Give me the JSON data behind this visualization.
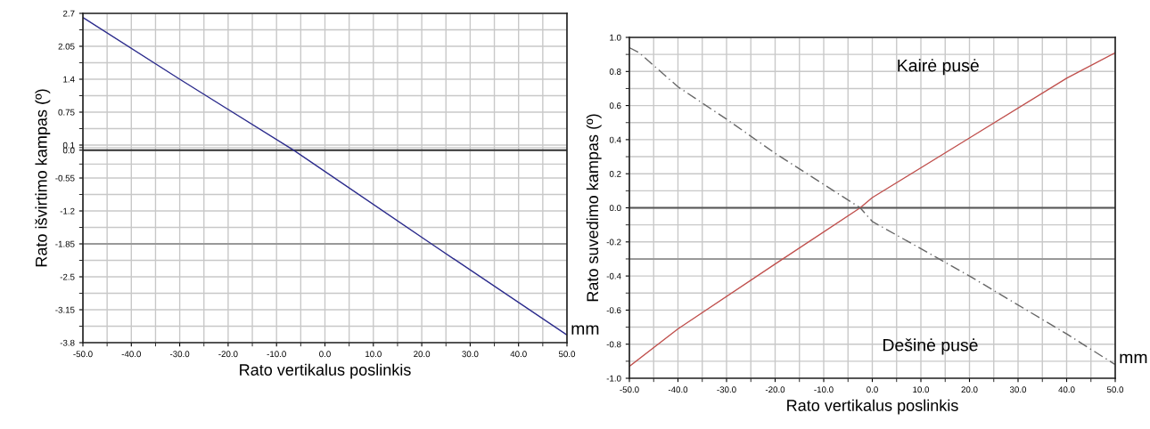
{
  "chart_data": [
    {
      "type": "line",
      "xlabel": "Rato vertikalus poslinkis",
      "ylabel": "Rato išvirtimo kampas (º)",
      "xlim": [
        -50,
        50
      ],
      "xticks": [
        {
          "value": -50,
          "label": "-50.0"
        },
        {
          "value": -40,
          "label": "-40.0"
        },
        {
          "value": -30,
          "label": "-30.0"
        },
        {
          "value": -20,
          "label": "-20.0"
        },
        {
          "value": -10,
          "label": "-10.0"
        },
        {
          "value": 0,
          "label": "0.0"
        },
        {
          "value": 10,
          "label": "10.0"
        },
        {
          "value": 20,
          "label": "20.0"
        },
        {
          "value": 30,
          "label": "30.0"
        },
        {
          "value": 40,
          "label": "40.0"
        },
        {
          "value": 50,
          "label": "50.0"
        }
      ],
      "ylim": [
        -3.8,
        2.7
      ],
      "yticks": [
        2.7,
        2.05,
        1.4,
        0.75,
        0.1,
        {
          "value": 0,
          "label": "0.0"
        },
        -0.55,
        -1.2,
        -1.85,
        -2.5,
        -3.15,
        -3.8
      ],
      "grid": true,
      "legend": false,
      "line_style": "solid",
      "series": [
        {
          "color": "#2b2b8c",
          "x": [
            -50,
            -30,
            -6.5,
            22,
            50
          ],
          "values": [
            2.62,
            1.4,
            0.0,
            -1.85,
            -3.65
          ]
        }
      ],
      "ref_lines": [
        {
          "axis": "y",
          "value": 0,
          "color": "#333333"
        },
        {
          "axis": "y",
          "value": -1.85,
          "color": "#999999"
        }
      ],
      "annotations": [
        {
          "text": "mm",
          "x": 50,
          "y": -3.6
        }
      ]
    },
    {
      "type": "line",
      "xlabel": "Rato vertikalus poslinkis",
      "ylabel": "Rato suvedimo kampas (º)",
      "xlim": [
        -50,
        50
      ],
      "xticks": [
        {
          "value": -50,
          "label": "-50.0"
        },
        {
          "value": -40,
          "label": "-40.0"
        },
        {
          "value": -30,
          "label": "-30.0"
        },
        {
          "value": -20,
          "label": "-20.0"
        },
        {
          "value": -10,
          "label": "-10.0"
        },
        {
          "value": 0,
          "label": "0.0"
        },
        {
          "value": 10,
          "label": "10.0"
        },
        {
          "value": 20,
          "label": "20.0"
        },
        {
          "value": 30,
          "label": "30.0"
        },
        {
          "value": 40,
          "label": "40.0"
        },
        {
          "value": 50,
          "label": "50.0"
        }
      ],
      "ylim": [
        -1.0,
        1.0
      ],
      "yticks": [
        {
          "value": 1.0,
          "label": "1.0"
        },
        0.8,
        0.6,
        0.4,
        0.2,
        {
          "value": 0,
          "label": "0.0"
        },
        -0.2,
        -0.4,
        -0.6,
        -0.8,
        {
          "value": -1.0,
          "label": "-1.0"
        }
      ],
      "grid": true,
      "legend": false,
      "series": [
        {
          "name": "Kairė pusė",
          "color": "#c0504d",
          "line_style": "solid",
          "x": [
            -50,
            -40,
            -20,
            -2.5,
            0,
            20,
            40,
            50
          ],
          "values": [
            -0.93,
            -0.71,
            -0.33,
            0.0,
            0.06,
            0.41,
            0.76,
            0.91
          ]
        },
        {
          "name": "Dešinė pusė",
          "color": "#666666",
          "line_style": "dashed",
          "x": [
            -50,
            -48,
            -40,
            -30,
            -20,
            -2.5,
            0,
            20,
            40,
            50
          ],
          "values": [
            0.94,
            0.91,
            0.71,
            0.52,
            0.32,
            0.0,
            -0.08,
            -0.4,
            -0.74,
            -0.92
          ]
        }
      ],
      "ref_lines": [
        {
          "axis": "y",
          "value": 0,
          "color": "#555555"
        },
        {
          "axis": "y",
          "value": -0.3,
          "color": "#999999"
        }
      ],
      "annotations": [
        {
          "text": "mm",
          "x": 50,
          "y": -0.9
        }
      ]
    }
  ]
}
